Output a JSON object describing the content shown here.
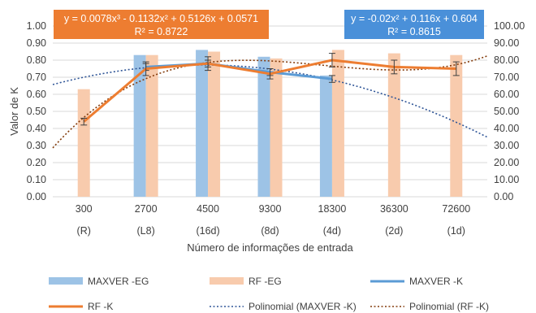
{
  "chart_data": {
    "type": "bar",
    "xlabel": "Número de informações de entrada",
    "ylabel_left": "Valor de K",
    "ylabel_right": "Valor de EG",
    "ylim_left": [
      0,
      1
    ],
    "ylim_right": [
      0,
      100
    ],
    "left_ticks": [
      "0.00",
      "0.10",
      "0.20",
      "0.30",
      "0.40",
      "0.50",
      "0.60",
      "0.70",
      "0.80",
      "0.90",
      "1.00"
    ],
    "right_ticks": [
      "0.00",
      "10.00",
      "20.00",
      "30.00",
      "40.00",
      "50.00",
      "60.00",
      "70.00",
      "80.00",
      "90.00",
      "100.00"
    ],
    "categories": [
      {
        "value": "300",
        "sub": "(R)"
      },
      {
        "value": "2700",
        "sub": "(L8)"
      },
      {
        "value": "4500",
        "sub": "(16d)"
      },
      {
        "value": "9300",
        "sub": "(8d)"
      },
      {
        "value": "18300",
        "sub": "(4d)"
      },
      {
        "value": "36300",
        "sub": "(2d)"
      },
      {
        "value": "72600",
        "sub": "(1d)"
      }
    ],
    "series": [
      {
        "name": "MAXVER -EG",
        "kind": "bar",
        "axis": "right",
        "color": "#9dc3e6",
        "values": [
          null,
          83,
          86,
          82,
          71,
          null,
          null
        ]
      },
      {
        "name": "RF -EG",
        "kind": "bar",
        "axis": "right",
        "color": "#f8cbad",
        "values": [
          63,
          83,
          85,
          81,
          86,
          84,
          83
        ]
      },
      {
        "name": "MAXVER -K",
        "kind": "line",
        "axis": "left",
        "color": "#5b9bd5",
        "values": [
          null,
          0.76,
          0.78,
          0.73,
          0.69,
          null,
          null
        ],
        "errors": [
          null,
          0.02,
          0.02,
          0.02,
          0.02,
          null,
          null
        ]
      },
      {
        "name": "RF -K",
        "kind": "line",
        "axis": "left",
        "color": "#ed7d31",
        "values": [
          0.44,
          0.75,
          0.78,
          0.72,
          0.8,
          0.76,
          0.75
        ],
        "errors": [
          0.02,
          0.04,
          0.04,
          0.03,
          0.04,
          0.04,
          0.04
        ]
      },
      {
        "name": "Polinomial (MAXVER -K)",
        "kind": "trend",
        "axis": "left",
        "color": "#2f5597",
        "coef": [
          -0.02,
          0.116,
          0.604
        ]
      },
      {
        "name": "Polinomial (RF -K)",
        "kind": "trend",
        "axis": "left",
        "color": "#843c0c",
        "coef": [
          0.0078,
          -0.1132,
          0.5126,
          0.0571
        ]
      }
    ],
    "annotations": [
      {
        "line1": "y = 0.0078x³ - 0.1132x² + 0.5126x + 0.0571",
        "line2": "R² = 0.8722",
        "color": "#ed7d31"
      },
      {
        "line1": "y = -0.02x² + 0.116x + 0.604",
        "line2": "R² = 0.8615",
        "color": "#4a90d9"
      }
    ],
    "legend_position": "bottom",
    "grid": true
  }
}
